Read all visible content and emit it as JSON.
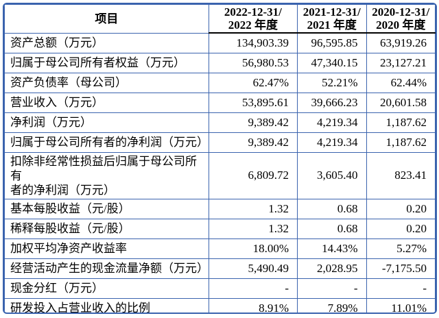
{
  "colors": {
    "border_blue": "#3a63ae",
    "header_rule": "#000000",
    "text": "#000000",
    "background": "#ffffff"
  },
  "table": {
    "header": {
      "item_label": "项目",
      "columns": [
        {
          "line1": "2022-12-31/",
          "line2": "2022 年度"
        },
        {
          "line1": "2021-12-31/",
          "line2": "2021 年度"
        },
        {
          "line1": "2020-12-31/",
          "line2": "2020 年度"
        }
      ]
    },
    "rows": [
      {
        "label": "资产总额（万元）",
        "values": [
          "134,903.39",
          "96,595.85",
          "63,919.26"
        ]
      },
      {
        "label": "归属于母公司所有者权益（万元）",
        "values": [
          "56,980.53",
          "47,340.15",
          "23,127.21"
        ]
      },
      {
        "label": "资产负债率（母公司）",
        "values": [
          "62.47%",
          "52.21%",
          "62.44%"
        ]
      },
      {
        "label": "营业收入（万元）",
        "values": [
          "53,895.61",
          "39,666.23",
          "20,601.58"
        ]
      },
      {
        "label": "净利润（万元）",
        "values": [
          "9,389.42",
          "4,219.34",
          "1,187.62"
        ]
      },
      {
        "label": "归属于母公司所有者的净利润（万元）",
        "values": [
          "9,389.42",
          "4,219.34",
          "1,187.62"
        ]
      },
      {
        "label": "扣除非经常性损益后归属于母公司所有\n者的净利润（万元）",
        "two_line": true,
        "values": [
          "6,809.72",
          "3,605.40",
          "823.41"
        ]
      },
      {
        "label": "基本每股收益（元/股）",
        "values": [
          "1.32",
          "0.68",
          "0.20"
        ]
      },
      {
        "label": "稀释每股收益（元/股）",
        "values": [
          "1.32",
          "0.68",
          "0.20"
        ]
      },
      {
        "label": "加权平均净资产收益率",
        "values": [
          "18.00%",
          "14.43%",
          "5.27%"
        ]
      },
      {
        "label": "经营活动产生的现金流量净额（万元）",
        "values": [
          "5,490.49",
          "2,028.95",
          "-7,175.50"
        ]
      },
      {
        "label": "现金分红（万元）",
        "values": [
          "-",
          "-",
          "-"
        ]
      },
      {
        "label": "研发投入占营业收入的比例",
        "values": [
          "8.91%",
          "7.89%",
          "11.01%"
        ]
      }
    ]
  }
}
